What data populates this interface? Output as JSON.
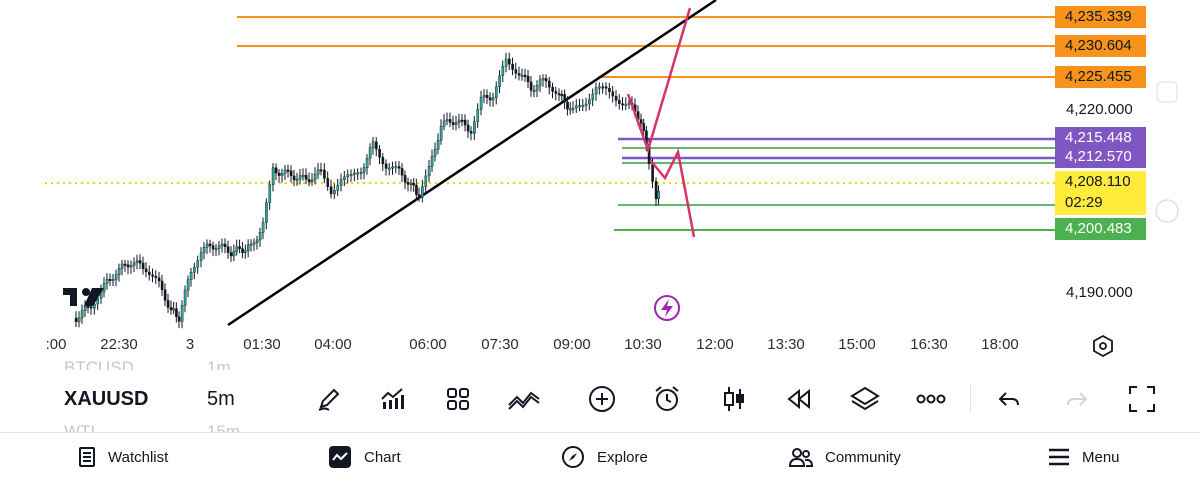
{
  "chart": {
    "symbol": "XAUUSD",
    "interval": "5m",
    "above_symbol": "BTCUSD",
    "above_interval": "1m",
    "below_symbol": "WTI",
    "below_interval": "15m",
    "time_labels": [
      ":00",
      "22:30",
      "3",
      "01:30",
      "04:00",
      "06:00",
      "07:30",
      "09:00",
      "10:30",
      "12:00",
      "13:30",
      "15:00",
      "16:30",
      "18:00"
    ],
    "price_axis": [
      "4,220.000",
      "4,190.000"
    ],
    "price_tags": {
      "orange_1": "4,235.339",
      "orange_2": "4,230.604",
      "orange_3": "4,225.455",
      "purple_1": "4,215.448",
      "purple_2": "4,212.570",
      "current_price": "4,208.110",
      "countdown": "02:29",
      "green_1": "4,200.483"
    },
    "colors": {
      "orange": "#f7931a",
      "purple": "#7e57c2",
      "green": "#4caf50",
      "current": "#ffeb3b",
      "candle_up": "#26a69a",
      "candle_down": "#131722",
      "pink": "#d6336c",
      "trendline": "#000000"
    }
  },
  "toolbar": {
    "icons": [
      "pencil-icon",
      "indicators-icon",
      "layout-grid-icon",
      "compare-icon",
      "add-icon",
      "alert-icon",
      "candles-icon",
      "replay-icon",
      "layers-icon",
      "more-icon",
      "undo-icon",
      "redo-icon",
      "fullscreen-icon"
    ]
  },
  "nav": {
    "watchlist": "Watchlist",
    "chart": "Chart",
    "explore": "Explore",
    "community": "Community",
    "menu": "Menu"
  }
}
